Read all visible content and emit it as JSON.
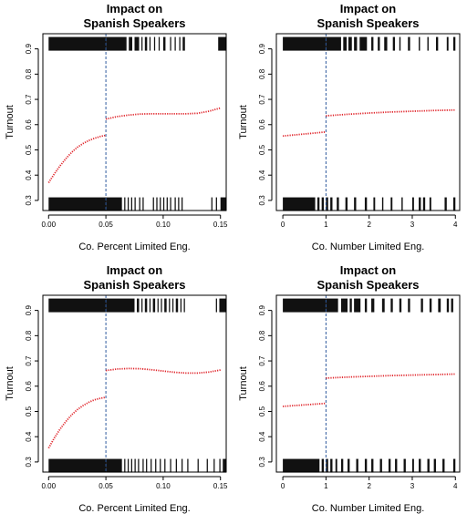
{
  "colors": {
    "curve": "#e0252b",
    "cutoff": "#2f5a9e",
    "rug": "#111111",
    "frame": "#000000"
  },
  "chart_data": [
    {
      "type": "scatter",
      "title": [
        "Impact on",
        "Spanish Speakers"
      ],
      "xlabel": "Co. Percent Limited Eng.",
      "ylabel": "Turnout",
      "xlim": [
        -0.005,
        0.155
      ],
      "ylim": [
        0.26,
        0.96
      ],
      "xticks": [
        0.0,
        0.05,
        0.1,
        0.15
      ],
      "xtick_labels": [
        "0.00",
        "0.05",
        "0.10",
        "0.15"
      ],
      "yticks": [
        0.3,
        0.4,
        0.5,
        0.6,
        0.7,
        0.8,
        0.9
      ],
      "ytick_labels": [
        "0.3",
        "0.4",
        "0.5",
        "0.6",
        "0.7",
        "0.8",
        "0.9"
      ],
      "cutoff": 0.05,
      "series": [
        {
          "x": [
            0.0,
            0.005,
            0.01,
            0.015,
            0.02,
            0.025,
            0.03,
            0.035,
            0.04,
            0.045,
            0.05
          ],
          "y": [
            0.37,
            0.405,
            0.437,
            0.465,
            0.49,
            0.51,
            0.525,
            0.537,
            0.546,
            0.553,
            0.558
          ]
        },
        {
          "x": [
            0.05,
            0.06,
            0.07,
            0.08,
            0.09,
            0.1,
            0.11,
            0.12,
            0.13,
            0.14,
            0.15
          ],
          "y": [
            0.622,
            0.632,
            0.638,
            0.642,
            0.643,
            0.643,
            0.643,
            0.643,
            0.645,
            0.653,
            0.666
          ]
        }
      ],
      "rug_top": {
        "y": 0.92,
        "spans": [
          [
            0.0,
            0.05
          ],
          [
            0.05,
            0.068
          ],
          [
            0.07,
            0.073
          ],
          [
            0.075,
            0.079
          ],
          [
            0.081,
            0.082
          ],
          [
            0.084,
            0.086
          ],
          [
            0.088,
            0.089
          ],
          [
            0.092,
            0.093
          ],
          [
            0.096,
            0.097
          ],
          [
            0.1,
            0.102
          ],
          [
            0.106,
            0.107
          ],
          [
            0.11,
            0.111
          ],
          [
            0.114,
            0.115
          ],
          [
            0.117,
            0.119
          ],
          [
            0.148,
            0.155
          ]
        ]
      },
      "rug_bottom": {
        "y": 0.285,
        "spans": [
          [
            0.0,
            0.05
          ],
          [
            0.05,
            0.064
          ],
          [
            0.066,
            0.067
          ],
          [
            0.069,
            0.07
          ],
          [
            0.072,
            0.073
          ],
          [
            0.075,
            0.076
          ],
          [
            0.079,
            0.08
          ],
          [
            0.082,
            0.083
          ],
          [
            0.091,
            0.092
          ],
          [
            0.094,
            0.095
          ],
          [
            0.097,
            0.098
          ],
          [
            0.1,
            0.101
          ],
          [
            0.103,
            0.104
          ],
          [
            0.106,
            0.107
          ],
          [
            0.11,
            0.111
          ],
          [
            0.113,
            0.114
          ],
          [
            0.116,
            0.117
          ],
          [
            0.142,
            0.143
          ],
          [
            0.146,
            0.147
          ],
          [
            0.15,
            0.155
          ]
        ]
      }
    },
    {
      "type": "scatter",
      "title": [
        "Impact on",
        "Spanish Speakers"
      ],
      "xlabel": "Co. Number Limited Eng.",
      "ylabel": "Turnout",
      "xlim": [
        -0.15,
        4.1
      ],
      "ylim": [
        0.26,
        0.96
      ],
      "xticks": [
        0,
        1,
        2,
        3,
        4
      ],
      "xtick_labels": [
        "0",
        "1",
        "2",
        "3",
        "4"
      ],
      "yticks": [
        0.3,
        0.4,
        0.5,
        0.6,
        0.7,
        0.8,
        0.9
      ],
      "ytick_labels": [
        "0.3",
        "0.4",
        "0.5",
        "0.6",
        "0.7",
        "0.8",
        "0.9"
      ],
      "cutoff": 1,
      "series": [
        {
          "x": [
            0,
            0.25,
            0.5,
            0.75,
            1
          ],
          "y": [
            0.555,
            0.559,
            0.563,
            0.567,
            0.571
          ]
        },
        {
          "x": [
            1,
            1.5,
            2,
            2.5,
            3,
            3.5,
            4
          ],
          "y": [
            0.635,
            0.641,
            0.646,
            0.65,
            0.653,
            0.656,
            0.658
          ]
        }
      ],
      "rug_top": {
        "y": 0.92,
        "spans": [
          [
            0.0,
            1.0
          ],
          [
            1.0,
            1.35
          ],
          [
            1.4,
            1.48
          ],
          [
            1.52,
            1.6
          ],
          [
            1.65,
            1.72
          ],
          [
            1.78,
            1.95
          ],
          [
            2.05,
            2.1
          ],
          [
            2.2,
            2.25
          ],
          [
            2.35,
            2.42
          ],
          [
            2.55,
            2.6
          ],
          [
            2.7,
            2.73
          ],
          [
            2.9,
            2.95
          ],
          [
            3.15,
            3.18
          ],
          [
            3.35,
            3.38
          ],
          [
            3.55,
            3.6
          ],
          [
            3.8,
            3.84
          ],
          [
            3.95,
            4.0
          ]
        ]
      },
      "rug_bottom": {
        "y": 0.285,
        "spans": [
          [
            0.0,
            0.75
          ],
          [
            0.8,
            0.85
          ],
          [
            0.9,
            0.95
          ],
          [
            1.0,
            1.05
          ],
          [
            1.1,
            1.15
          ],
          [
            1.25,
            1.3
          ],
          [
            1.45,
            1.5
          ],
          [
            1.65,
            1.7
          ],
          [
            1.9,
            1.95
          ],
          [
            2.1,
            2.14
          ],
          [
            2.3,
            2.33
          ],
          [
            2.5,
            2.54
          ],
          [
            2.75,
            2.78
          ],
          [
            3.0,
            3.04
          ],
          [
            3.15,
            3.2
          ],
          [
            3.25,
            3.3
          ],
          [
            3.4,
            3.44
          ],
          [
            3.75,
            3.8
          ],
          [
            3.95,
            4.0
          ]
        ]
      }
    },
    {
      "type": "scatter",
      "title": [
        "Impact on",
        "Spanish Speakers"
      ],
      "xlabel": "Co. Percent Limited Eng.",
      "ylabel": "Turnout",
      "xlim": [
        -0.005,
        0.155
      ],
      "ylim": [
        0.26,
        0.96
      ],
      "xticks": [
        0.0,
        0.05,
        0.1,
        0.15
      ],
      "xtick_labels": [
        "0.00",
        "0.05",
        "0.10",
        "0.15"
      ],
      "yticks": [
        0.3,
        0.4,
        0.5,
        0.6,
        0.7,
        0.8,
        0.9
      ],
      "ytick_labels": [
        "0.3",
        "0.4",
        "0.5",
        "0.6",
        "0.7",
        "0.8",
        "0.9"
      ],
      "cutoff": 0.05,
      "series": [
        {
          "x": [
            0.0,
            0.005,
            0.01,
            0.015,
            0.02,
            0.025,
            0.03,
            0.035,
            0.04,
            0.045,
            0.05
          ],
          "y": [
            0.355,
            0.395,
            0.43,
            0.46,
            0.486,
            0.507,
            0.523,
            0.536,
            0.546,
            0.552,
            0.556
          ]
        },
        {
          "x": [
            0.05,
            0.06,
            0.07,
            0.08,
            0.09,
            0.1,
            0.11,
            0.12,
            0.13,
            0.14,
            0.15
          ],
          "y": [
            0.662,
            0.668,
            0.67,
            0.669,
            0.665,
            0.66,
            0.655,
            0.652,
            0.652,
            0.656,
            0.664
          ]
        }
      ],
      "rug_top": {
        "y": 0.92,
        "spans": [
          [
            0.0,
            0.05
          ],
          [
            0.05,
            0.075
          ],
          [
            0.077,
            0.079
          ],
          [
            0.081,
            0.082
          ],
          [
            0.084,
            0.086
          ],
          [
            0.088,
            0.089
          ],
          [
            0.091,
            0.093
          ],
          [
            0.095,
            0.096
          ],
          [
            0.098,
            0.099
          ],
          [
            0.101,
            0.103
          ],
          [
            0.105,
            0.106
          ],
          [
            0.108,
            0.109
          ],
          [
            0.111,
            0.113
          ],
          [
            0.115,
            0.116
          ],
          [
            0.118,
            0.119
          ],
          [
            0.146,
            0.147
          ],
          [
            0.149,
            0.155
          ]
        ]
      },
      "rug_bottom": {
        "y": 0.285,
        "spans": [
          [
            0.0,
            0.05
          ],
          [
            0.05,
            0.064
          ],
          [
            0.066,
            0.067
          ],
          [
            0.069,
            0.07
          ],
          [
            0.072,
            0.073
          ],
          [
            0.075,
            0.076
          ],
          [
            0.078,
            0.079
          ],
          [
            0.082,
            0.083
          ],
          [
            0.085,
            0.086
          ],
          [
            0.089,
            0.09
          ],
          [
            0.093,
            0.094
          ],
          [
            0.097,
            0.098
          ],
          [
            0.101,
            0.102
          ],
          [
            0.106,
            0.107
          ],
          [
            0.111,
            0.112
          ],
          [
            0.116,
            0.117
          ],
          [
            0.121,
            0.122
          ],
          [
            0.13,
            0.131
          ],
          [
            0.138,
            0.139
          ],
          [
            0.144,
            0.145
          ],
          [
            0.149,
            0.15
          ],
          [
            0.152,
            0.155
          ]
        ]
      }
    },
    {
      "type": "scatter",
      "title": [
        "Impact on",
        "Spanish Speakers"
      ],
      "xlabel": "Co. Number Limited Eng.",
      "ylabel": "Turnout",
      "xlim": [
        -0.15,
        4.1
      ],
      "ylim": [
        0.26,
        0.96
      ],
      "xticks": [
        0,
        1,
        2,
        3,
        4
      ],
      "xtick_labels": [
        "0",
        "1",
        "2",
        "3",
        "4"
      ],
      "yticks": [
        0.3,
        0.4,
        0.5,
        0.6,
        0.7,
        0.8,
        0.9
      ],
      "ytick_labels": [
        "0.3",
        "0.4",
        "0.5",
        "0.6",
        "0.7",
        "0.8",
        "0.9"
      ],
      "cutoff": 1,
      "series": [
        {
          "x": [
            0,
            0.25,
            0.5,
            0.75,
            1
          ],
          "y": [
            0.52,
            0.523,
            0.526,
            0.529,
            0.532
          ]
        },
        {
          "x": [
            1,
            1.5,
            2,
            2.5,
            3,
            3.5,
            4
          ],
          "y": [
            0.632,
            0.636,
            0.639,
            0.642,
            0.644,
            0.646,
            0.648
          ]
        }
      ],
      "rug_top": {
        "y": 0.92,
        "spans": [
          [
            0.0,
            1.0
          ],
          [
            1.0,
            1.28
          ],
          [
            1.35,
            1.5
          ],
          [
            1.55,
            1.6
          ],
          [
            1.65,
            1.8
          ],
          [
            1.9,
            1.95
          ],
          [
            2.05,
            2.12
          ],
          [
            2.3,
            2.36
          ],
          [
            2.5,
            2.55
          ],
          [
            2.7,
            2.75
          ],
          [
            2.9,
            2.95
          ],
          [
            3.2,
            3.25
          ],
          [
            3.4,
            3.45
          ],
          [
            3.6,
            3.66
          ],
          [
            3.8,
            3.85
          ],
          [
            3.9,
            3.95
          ]
        ]
      },
      "rug_bottom": {
        "y": 0.285,
        "spans": [
          [
            0.0,
            0.85
          ],
          [
            0.9,
            0.95
          ],
          [
            1.0,
            1.05
          ],
          [
            1.1,
            1.15
          ],
          [
            1.22,
            1.26
          ],
          [
            1.35,
            1.4
          ],
          [
            1.5,
            1.55
          ],
          [
            1.7,
            1.75
          ],
          [
            1.9,
            1.95
          ],
          [
            2.05,
            2.1
          ],
          [
            2.25,
            2.3
          ],
          [
            2.45,
            2.5
          ],
          [
            2.6,
            2.65
          ],
          [
            2.8,
            2.85
          ],
          [
            3.0,
            3.04
          ],
          [
            3.15,
            3.2
          ],
          [
            3.35,
            3.4
          ],
          [
            3.5,
            3.55
          ],
          [
            3.7,
            3.75
          ],
          [
            3.95,
            4.0
          ]
        ]
      }
    }
  ]
}
